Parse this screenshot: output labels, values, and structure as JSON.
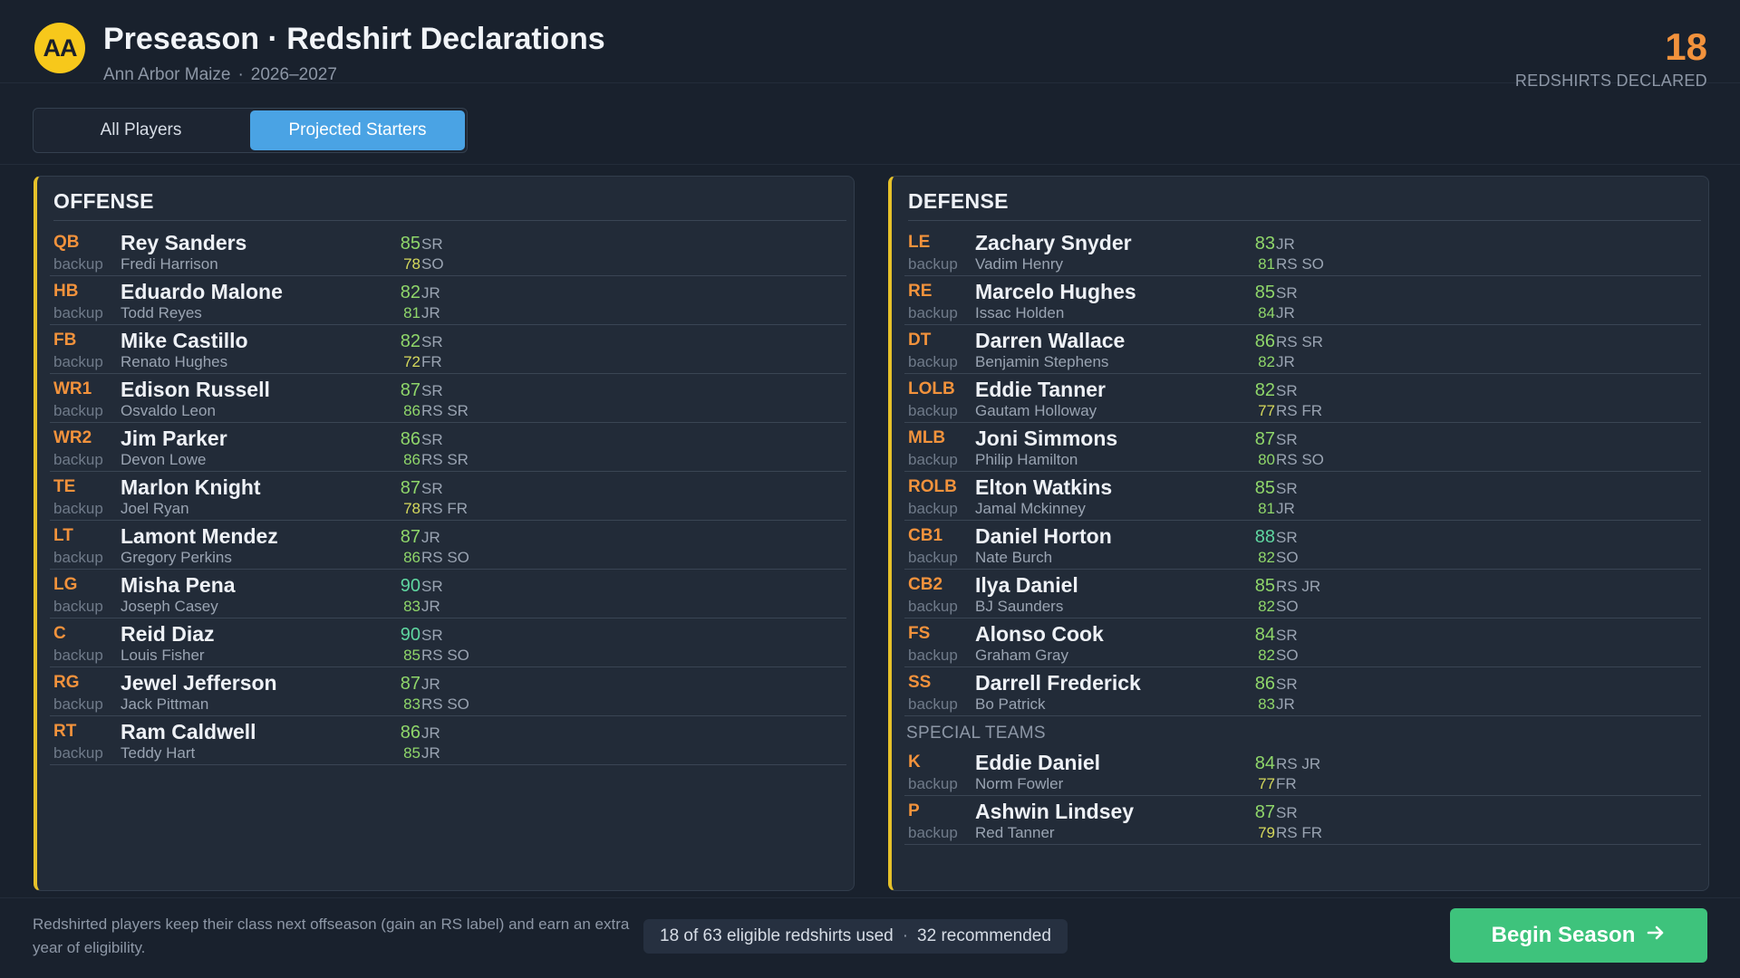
{
  "header": {
    "logo_text": "AA",
    "title": "Preseason · Redshirt Declarations",
    "team": "Ann Arbor Maize",
    "season": "2026–2027",
    "redshirt_count": "18",
    "redshirt_label": "REDSHIRTS DECLARED"
  },
  "tabs": [
    {
      "label": "All Players",
      "active": false
    },
    {
      "label": "Projected Starters",
      "active": true
    }
  ],
  "backup_label": "backup",
  "offense": {
    "title": "OFFENSE",
    "rows": [
      {
        "pos": "QB",
        "starter": {
          "name": "Rey Sanders",
          "rating": "85",
          "class": "SR"
        },
        "backup": {
          "name": "Fredi Harrison",
          "rating": "78",
          "class": "SO"
        }
      },
      {
        "pos": "HB",
        "starter": {
          "name": "Eduardo Malone",
          "rating": "82",
          "class": "JR"
        },
        "backup": {
          "name": "Todd Reyes",
          "rating": "81",
          "class": "JR"
        }
      },
      {
        "pos": "FB",
        "starter": {
          "name": "Mike Castillo",
          "rating": "82",
          "class": "SR"
        },
        "backup": {
          "name": "Renato Hughes",
          "rating": "72",
          "class": "FR"
        }
      },
      {
        "pos": "WR1",
        "starter": {
          "name": "Edison Russell",
          "rating": "87",
          "class": "SR"
        },
        "backup": {
          "name": "Osvaldo Leon",
          "rating": "86",
          "class": "RS SR"
        }
      },
      {
        "pos": "WR2",
        "starter": {
          "name": "Jim Parker",
          "rating": "86",
          "class": "SR"
        },
        "backup": {
          "name": "Devon Lowe",
          "rating": "86",
          "class": "RS SR"
        }
      },
      {
        "pos": "TE",
        "starter": {
          "name": "Marlon Knight",
          "rating": "87",
          "class": "SR"
        },
        "backup": {
          "name": "Joel Ryan",
          "rating": "78",
          "class": "RS FR"
        }
      },
      {
        "pos": "LT",
        "starter": {
          "name": "Lamont Mendez",
          "rating": "87",
          "class": "JR"
        },
        "backup": {
          "name": "Gregory Perkins",
          "rating": "86",
          "class": "RS SO"
        }
      },
      {
        "pos": "LG",
        "starter": {
          "name": "Misha Pena",
          "rating": "90",
          "class": "SR"
        },
        "backup": {
          "name": "Joseph Casey",
          "rating": "83",
          "class": "JR"
        }
      },
      {
        "pos": "C",
        "starter": {
          "name": "Reid Diaz",
          "rating": "90",
          "class": "SR"
        },
        "backup": {
          "name": "Louis Fisher",
          "rating": "85",
          "class": "RS SO"
        }
      },
      {
        "pos": "RG",
        "starter": {
          "name": "Jewel Jefferson",
          "rating": "87",
          "class": "JR"
        },
        "backup": {
          "name": "Jack Pittman",
          "rating": "83",
          "class": "RS SO"
        }
      },
      {
        "pos": "RT",
        "starter": {
          "name": "Ram Caldwell",
          "rating": "86",
          "class": "JR"
        },
        "backup": {
          "name": "Teddy Hart",
          "rating": "85",
          "class": "JR"
        }
      }
    ]
  },
  "defense": {
    "title": "DEFENSE",
    "rows": [
      {
        "pos": "LE",
        "starter": {
          "name": "Zachary Snyder",
          "rating": "83",
          "class": "JR"
        },
        "backup": {
          "name": "Vadim Henry",
          "rating": "81",
          "class": "RS SO"
        }
      },
      {
        "pos": "RE",
        "starter": {
          "name": "Marcelo Hughes",
          "rating": "85",
          "class": "SR"
        },
        "backup": {
          "name": "Issac Holden",
          "rating": "84",
          "class": "JR"
        }
      },
      {
        "pos": "DT",
        "starter": {
          "name": "Darren Wallace",
          "rating": "86",
          "class": "RS SR"
        },
        "backup": {
          "name": "Benjamin Stephens",
          "rating": "82",
          "class": "JR"
        }
      },
      {
        "pos": "LOLB",
        "starter": {
          "name": "Eddie Tanner",
          "rating": "82",
          "class": "SR"
        },
        "backup": {
          "name": "Gautam Holloway",
          "rating": "77",
          "class": "RS FR"
        }
      },
      {
        "pos": "MLB",
        "starter": {
          "name": "Joni Simmons",
          "rating": "87",
          "class": "SR"
        },
        "backup": {
          "name": "Philip Hamilton",
          "rating": "80",
          "class": "RS SO"
        }
      },
      {
        "pos": "ROLB",
        "starter": {
          "name": "Elton Watkins",
          "rating": "85",
          "class": "SR"
        },
        "backup": {
          "name": "Jamal Mckinney",
          "rating": "81",
          "class": "JR"
        }
      },
      {
        "pos": "CB1",
        "starter": {
          "name": "Daniel Horton",
          "rating": "88",
          "class": "SR"
        },
        "backup": {
          "name": "Nate Burch",
          "rating": "82",
          "class": "SO"
        }
      },
      {
        "pos": "CB2",
        "starter": {
          "name": "Ilya Daniel",
          "rating": "85",
          "class": "RS JR"
        },
        "backup": {
          "name": "BJ Saunders",
          "rating": "82",
          "class": "SO"
        }
      },
      {
        "pos": "FS",
        "starter": {
          "name": "Alonso Cook",
          "rating": "84",
          "class": "SR"
        },
        "backup": {
          "name": "Graham Gray",
          "rating": "82",
          "class": "SO"
        }
      },
      {
        "pos": "SS",
        "starter": {
          "name": "Darrell Frederick",
          "rating": "86",
          "class": "SR"
        },
        "backup": {
          "name": "Bo Patrick",
          "rating": "83",
          "class": "JR"
        }
      }
    ]
  },
  "special_teams": {
    "title": "SPECIAL TEAMS",
    "rows": [
      {
        "pos": "K",
        "starter": {
          "name": "Eddie Daniel",
          "rating": "84",
          "class": "RS JR"
        },
        "backup": {
          "name": "Norm Fowler",
          "rating": "77",
          "class": "FR"
        }
      },
      {
        "pos": "P",
        "starter": {
          "name": "Ashwin Lindsey",
          "rating": "87",
          "class": "SR"
        },
        "backup": {
          "name": "Red Tanner",
          "rating": "79",
          "class": "RS FR"
        }
      }
    ]
  },
  "footer": {
    "note": "Redshirted players keep their class next offseason (gain an RS label) and earn an extra year of eligibility.",
    "used": "18 of 63 eligible redshirts used",
    "recommended": "32 recommended",
    "begin_label": "Begin Season",
    "begin_icon": "arrow-right-icon"
  },
  "colors": {
    "accent_orange": "#f2923c",
    "rating_green": "#8fd66a",
    "rating_yellow": "#d6d95c",
    "rating_teal": "#5fd6a0",
    "tab_active": "#4aa3e4",
    "begin_button": "#3ec37c",
    "logo_bg": "#f7c81b"
  }
}
